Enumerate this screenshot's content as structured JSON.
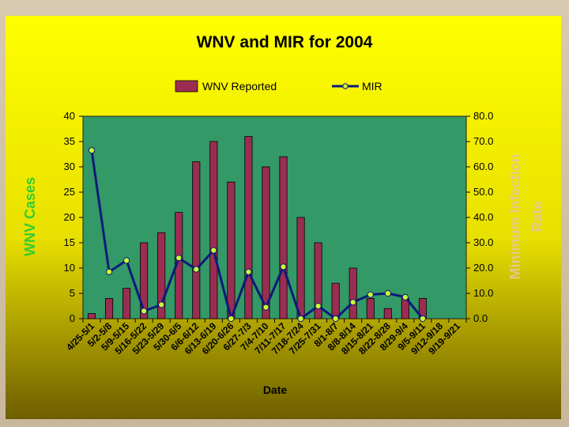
{
  "chart_data": {
    "type": "bar",
    "title": "WNV and MIR for 2004",
    "xlabel": "Date",
    "ylabel": "WNV Cases",
    "y2label_line1": "Minimum Infection",
    "y2label_line2": "Rate",
    "ylim": [
      0,
      40
    ],
    "y2lim": [
      0,
      80
    ],
    "yticks": [
      "0",
      "5",
      "10",
      "15",
      "20",
      "25",
      "30",
      "35",
      "40"
    ],
    "y2ticks": [
      "0.0",
      "10.0",
      "20.0",
      "30.0",
      "40.0",
      "50.0",
      "60.0",
      "70.0",
      "80.0"
    ],
    "legend_placement": "top-center",
    "grid": false,
    "categories": [
      "4/25-5/1",
      "5/2-5/8",
      "5/9-5/15",
      "5/16-5/22",
      "5/23-5/29",
      "5/30-6/5",
      "6/6-6/12",
      "6/13-6/19",
      "6/20-6/26",
      "6/27-7/3",
      "7/4-7/10",
      "7/11-7/17",
      "7/18-7/24",
      "7/25-7/31",
      "8/1-8/7",
      "8/8-8/14",
      "8/15-8/21",
      "8/22-8/28",
      "8/29-9/4",
      "9/5-9/11",
      "9/12-9/18",
      "9/19-9/21"
    ],
    "series": [
      {
        "name": "WNV Reported",
        "type": "bar",
        "axis": "left",
        "color": "#9b2d52",
        "values": [
          1,
          4,
          6,
          15,
          17,
          21,
          31,
          35,
          27,
          36,
          30,
          32,
          20,
          15,
          7,
          10,
          4,
          2,
          4,
          4,
          0,
          0
        ]
      },
      {
        "name": "MIR",
        "type": "line",
        "axis": "right",
        "color": "#0d1a7a",
        "marker_color": "#ccff33",
        "values": [
          66.5,
          18.5,
          23.0,
          3.0,
          5.5,
          24.0,
          19.5,
          27.0,
          0.0,
          18.5,
          4.5,
          20.5,
          0.0,
          5.0,
          0.0,
          6.5,
          9.5,
          10.0,
          8.5,
          0.0,
          null,
          null
        ]
      }
    ]
  },
  "colors": {
    "plot_background": "#339966",
    "panel_top": "#ffff00",
    "panel_bottom": "#7a6a00",
    "ylabel_color": "#33cc33",
    "y2label_color": "#e6c98a"
  }
}
